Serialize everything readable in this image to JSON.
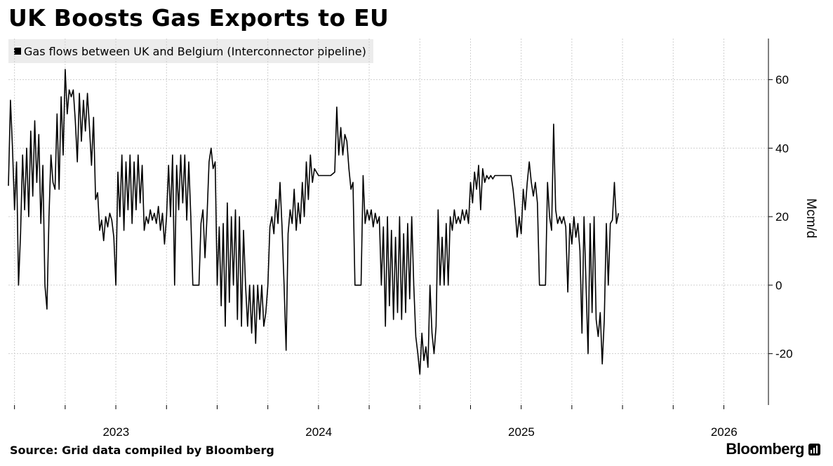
{
  "title": "UK Boosts Gas Exports to EU",
  "legend": {
    "label": "Gas flows between UK and Belgium (Interconnector pipeline)"
  },
  "source": "Source: Grid data compiled by Bloomberg",
  "brand": "Bloomberg",
  "chart_data": {
    "type": "line",
    "title": "UK Boosts Gas Exports to EU",
    "xlabel": "",
    "ylabel": "Mcm/d",
    "ylim": [
      -35,
      72
    ],
    "xlim": [
      2022.47,
      2026.22
    ],
    "y_ticks": [
      -20,
      0,
      20,
      40,
      60
    ],
    "x_ticks": [
      {
        "label": "2023",
        "value": 2023.0
      },
      {
        "label": "2024",
        "value": 2024.0
      },
      {
        "label": "2025",
        "value": 2025.0
      },
      {
        "label": "2026",
        "value": 2026.0
      }
    ],
    "grid": true,
    "grid_x_quarters": [
      2022.5,
      2022.75,
      2023.0,
      2023.25,
      2023.5,
      2023.75,
      2024.0,
      2024.25,
      2024.5,
      2024.75,
      2025.0,
      2025.25,
      2025.5,
      2025.75,
      2026.0
    ],
    "series": [
      {
        "name": "Gas flows between UK and Belgium (Interconnector pipeline)",
        "color": "#000000",
        "points": [
          [
            2022.47,
            29
          ],
          [
            2022.48,
            54
          ],
          [
            2022.49,
            40
          ],
          [
            2022.5,
            22
          ],
          [
            2022.51,
            36
          ],
          [
            2022.52,
            0
          ],
          [
            2022.53,
            15
          ],
          [
            2022.54,
            38
          ],
          [
            2022.55,
            22
          ],
          [
            2022.56,
            40
          ],
          [
            2022.57,
            20
          ],
          [
            2022.58,
            45
          ],
          [
            2022.59,
            26
          ],
          [
            2022.6,
            48
          ],
          [
            2022.61,
            30
          ],
          [
            2022.62,
            44
          ],
          [
            2022.63,
            18
          ],
          [
            2022.64,
            35
          ],
          [
            2022.65,
            0
          ],
          [
            2022.66,
            -7
          ],
          [
            2022.67,
            20
          ],
          [
            2022.68,
            38
          ],
          [
            2022.69,
            30
          ],
          [
            2022.7,
            28
          ],
          [
            2022.71,
            50
          ],
          [
            2022.72,
            28
          ],
          [
            2022.73,
            55
          ],
          [
            2022.74,
            38
          ],
          [
            2022.75,
            63
          ],
          [
            2022.76,
            50
          ],
          [
            2022.77,
            57
          ],
          [
            2022.78,
            55
          ],
          [
            2022.79,
            57
          ],
          [
            2022.8,
            48
          ],
          [
            2022.81,
            36
          ],
          [
            2022.82,
            56
          ],
          [
            2022.83,
            42
          ],
          [
            2022.84,
            54
          ],
          [
            2022.85,
            45
          ],
          [
            2022.86,
            56
          ],
          [
            2022.87,
            46
          ],
          [
            2022.88,
            35
          ],
          [
            2022.89,
            49
          ],
          [
            2022.9,
            25
          ],
          [
            2022.91,
            27
          ],
          [
            2022.92,
            16
          ],
          [
            2022.93,
            19
          ],
          [
            2022.94,
            13
          ],
          [
            2022.95,
            20
          ],
          [
            2022.96,
            17
          ],
          [
            2022.97,
            21
          ],
          [
            2022.98,
            19
          ],
          [
            2022.99,
            14
          ],
          [
            2023.0,
            0
          ],
          [
            2023.01,
            33
          ],
          [
            2023.02,
            20
          ],
          [
            2023.03,
            38
          ],
          [
            2023.04,
            16
          ],
          [
            2023.05,
            36
          ],
          [
            2023.06,
            22
          ],
          [
            2023.07,
            38
          ],
          [
            2023.08,
            18
          ],
          [
            2023.09,
            36
          ],
          [
            2023.1,
            22
          ],
          [
            2023.11,
            38
          ],
          [
            2023.12,
            24
          ],
          [
            2023.13,
            35
          ],
          [
            2023.14,
            16
          ],
          [
            2023.15,
            20
          ],
          [
            2023.16,
            18
          ],
          [
            2023.17,
            22
          ],
          [
            2023.18,
            19
          ],
          [
            2023.19,
            21
          ],
          [
            2023.2,
            18
          ],
          [
            2023.21,
            23
          ],
          [
            2023.22,
            16
          ],
          [
            2023.23,
            21
          ],
          [
            2023.24,
            12
          ],
          [
            2023.25,
            20
          ],
          [
            2023.26,
            35
          ],
          [
            2023.27,
            20
          ],
          [
            2023.28,
            38
          ],
          [
            2023.29,
            0
          ],
          [
            2023.3,
            35
          ],
          [
            2023.31,
            22
          ],
          [
            2023.32,
            38
          ],
          [
            2023.33,
            24
          ],
          [
            2023.34,
            38
          ],
          [
            2023.35,
            19
          ],
          [
            2023.36,
            36
          ],
          [
            2023.37,
            20
          ],
          [
            2023.38,
            0
          ],
          [
            2023.39,
            0
          ],
          [
            2023.4,
            0
          ],
          [
            2023.41,
            0
          ],
          [
            2023.42,
            18
          ],
          [
            2023.43,
            22
          ],
          [
            2023.44,
            8
          ],
          [
            2023.45,
            20
          ],
          [
            2023.46,
            36
          ],
          [
            2023.47,
            40
          ],
          [
            2023.48,
            34
          ],
          [
            2023.49,
            36
          ],
          [
            2023.5,
            0
          ],
          [
            2023.51,
            17
          ],
          [
            2023.52,
            -6
          ],
          [
            2023.53,
            18
          ],
          [
            2023.54,
            -12
          ],
          [
            2023.55,
            24
          ],
          [
            2023.56,
            -5
          ],
          [
            2023.57,
            20
          ],
          [
            2023.58,
            0
          ],
          [
            2023.59,
            22
          ],
          [
            2023.6,
            -10
          ],
          [
            2023.61,
            20
          ],
          [
            2023.62,
            -12
          ],
          [
            2023.63,
            16
          ],
          [
            2023.64,
            0
          ],
          [
            2023.65,
            -12
          ],
          [
            2023.66,
            0
          ],
          [
            2023.67,
            -14
          ],
          [
            2023.68,
            0
          ],
          [
            2023.69,
            -17
          ],
          [
            2023.7,
            0
          ],
          [
            2023.71,
            -10
          ],
          [
            2023.72,
            0
          ],
          [
            2023.73,
            -12
          ],
          [
            2023.74,
            -8
          ],
          [
            2023.75,
            0
          ],
          [
            2023.76,
            17
          ],
          [
            2023.77,
            20
          ],
          [
            2023.78,
            15
          ],
          [
            2023.79,
            25
          ],
          [
            2023.8,
            18
          ],
          [
            2023.81,
            30
          ],
          [
            2023.82,
            17
          ],
          [
            2023.83,
            0
          ],
          [
            2023.84,
            -19
          ],
          [
            2023.85,
            15
          ],
          [
            2023.86,
            22
          ],
          [
            2023.87,
            18
          ],
          [
            2023.88,
            28
          ],
          [
            2023.89,
            16
          ],
          [
            2023.9,
            24
          ],
          [
            2023.91,
            18
          ],
          [
            2023.92,
            30
          ],
          [
            2023.93,
            20
          ],
          [
            2023.94,
            36
          ],
          [
            2023.95,
            25
          ],
          [
            2023.96,
            38
          ],
          [
            2023.97,
            30
          ],
          [
            2023.98,
            34
          ],
          [
            2023.99,
            33
          ],
          [
            2024.0,
            32
          ],
          [
            2024.02,
            32
          ],
          [
            2024.04,
            32
          ],
          [
            2024.06,
            32
          ],
          [
            2024.08,
            33
          ],
          [
            2024.09,
            52
          ],
          [
            2024.1,
            38
          ],
          [
            2024.11,
            46
          ],
          [
            2024.12,
            38
          ],
          [
            2024.13,
            44
          ],
          [
            2024.14,
            42
          ],
          [
            2024.15,
            34
          ],
          [
            2024.16,
            28
          ],
          [
            2024.17,
            30
          ],
          [
            2024.18,
            0
          ],
          [
            2024.19,
            0
          ],
          [
            2024.2,
            0
          ],
          [
            2024.21,
            0
          ],
          [
            2024.22,
            32
          ],
          [
            2024.23,
            18
          ],
          [
            2024.24,
            22
          ],
          [
            2024.25,
            19
          ],
          [
            2024.26,
            22
          ],
          [
            2024.27,
            17
          ],
          [
            2024.28,
            21
          ],
          [
            2024.29,
            18
          ],
          [
            2024.3,
            20
          ],
          [
            2024.31,
            0
          ],
          [
            2024.32,
            17
          ],
          [
            2024.33,
            -12
          ],
          [
            2024.34,
            20
          ],
          [
            2024.35,
            -6
          ],
          [
            2024.36,
            16
          ],
          [
            2024.37,
            -10
          ],
          [
            2024.38,
            14
          ],
          [
            2024.39,
            -8
          ],
          [
            2024.4,
            20
          ],
          [
            2024.41,
            -10
          ],
          [
            2024.42,
            15
          ],
          [
            2024.43,
            -8
          ],
          [
            2024.44,
            18
          ],
          [
            2024.45,
            -4
          ],
          [
            2024.46,
            20
          ],
          [
            2024.47,
            0
          ],
          [
            2024.48,
            -15
          ],
          [
            2024.49,
            -20
          ],
          [
            2024.5,
            -26
          ],
          [
            2024.51,
            -14
          ],
          [
            2024.52,
            -22
          ],
          [
            2024.53,
            -18
          ],
          [
            2024.54,
            -24
          ],
          [
            2024.55,
            0
          ],
          [
            2024.56,
            -14
          ],
          [
            2024.57,
            -20
          ],
          [
            2024.58,
            -12
          ],
          [
            2024.59,
            22
          ],
          [
            2024.6,
            0
          ],
          [
            2024.61,
            14
          ],
          [
            2024.62,
            0
          ],
          [
            2024.63,
            18
          ],
          [
            2024.64,
            0
          ],
          [
            2024.65,
            20
          ],
          [
            2024.66,
            16
          ],
          [
            2024.67,
            22
          ],
          [
            2024.68,
            18
          ],
          [
            2024.69,
            20
          ],
          [
            2024.7,
            18
          ],
          [
            2024.71,
            22
          ],
          [
            2024.72,
            19
          ],
          [
            2024.73,
            22
          ],
          [
            2024.74,
            18
          ],
          [
            2024.75,
            30
          ],
          [
            2024.76,
            24
          ],
          [
            2024.77,
            33
          ],
          [
            2024.78,
            28
          ],
          [
            2024.79,
            35
          ],
          [
            2024.8,
            22
          ],
          [
            2024.81,
            34
          ],
          [
            2024.82,
            30
          ],
          [
            2024.83,
            32
          ],
          [
            2024.84,
            31
          ],
          [
            2024.85,
            32
          ],
          [
            2024.86,
            31
          ],
          [
            2024.87,
            32
          ],
          [
            2024.88,
            32
          ],
          [
            2024.89,
            32
          ],
          [
            2024.9,
            32
          ],
          [
            2024.91,
            32
          ],
          [
            2024.92,
            32
          ],
          [
            2024.93,
            32
          ],
          [
            2024.94,
            32
          ],
          [
            2024.95,
            32
          ],
          [
            2024.96,
            28
          ],
          [
            2024.97,
            22
          ],
          [
            2024.98,
            14
          ],
          [
            2024.99,
            20
          ],
          [
            2025.0,
            15
          ],
          [
            2025.01,
            28
          ],
          [
            2025.02,
            22
          ],
          [
            2025.03,
            30
          ],
          [
            2025.04,
            36
          ],
          [
            2025.05,
            30
          ],
          [
            2025.06,
            26
          ],
          [
            2025.07,
            30
          ],
          [
            2025.08,
            24
          ],
          [
            2025.09,
            0
          ],
          [
            2025.1,
            0
          ],
          [
            2025.11,
            0
          ],
          [
            2025.12,
            0
          ],
          [
            2025.13,
            30
          ],
          [
            2025.14,
            20
          ],
          [
            2025.15,
            16
          ],
          [
            2025.16,
            47
          ],
          [
            2025.17,
            22
          ],
          [
            2025.18,
            18
          ],
          [
            2025.19,
            20
          ],
          [
            2025.2,
            18
          ],
          [
            2025.21,
            20
          ],
          [
            2025.22,
            17
          ],
          [
            2025.23,
            -2
          ],
          [
            2025.24,
            18
          ],
          [
            2025.25,
            12
          ],
          [
            2025.26,
            20
          ],
          [
            2025.27,
            14
          ],
          [
            2025.28,
            18
          ],
          [
            2025.29,
            10
          ],
          [
            2025.3,
            -14
          ],
          [
            2025.31,
            20
          ],
          [
            2025.32,
            0
          ],
          [
            2025.33,
            -20
          ],
          [
            2025.34,
            18
          ],
          [
            2025.35,
            -8
          ],
          [
            2025.36,
            20
          ],
          [
            2025.37,
            -10
          ],
          [
            2025.38,
            -15
          ],
          [
            2025.39,
            -8
          ],
          [
            2025.4,
            -23
          ],
          [
            2025.41,
            -10
          ],
          [
            2025.42,
            18
          ],
          [
            2025.43,
            0
          ],
          [
            2025.44,
            18
          ],
          [
            2025.45,
            19
          ],
          [
            2025.46,
            30
          ],
          [
            2025.47,
            18
          ],
          [
            2025.48,
            21
          ]
        ]
      }
    ]
  }
}
